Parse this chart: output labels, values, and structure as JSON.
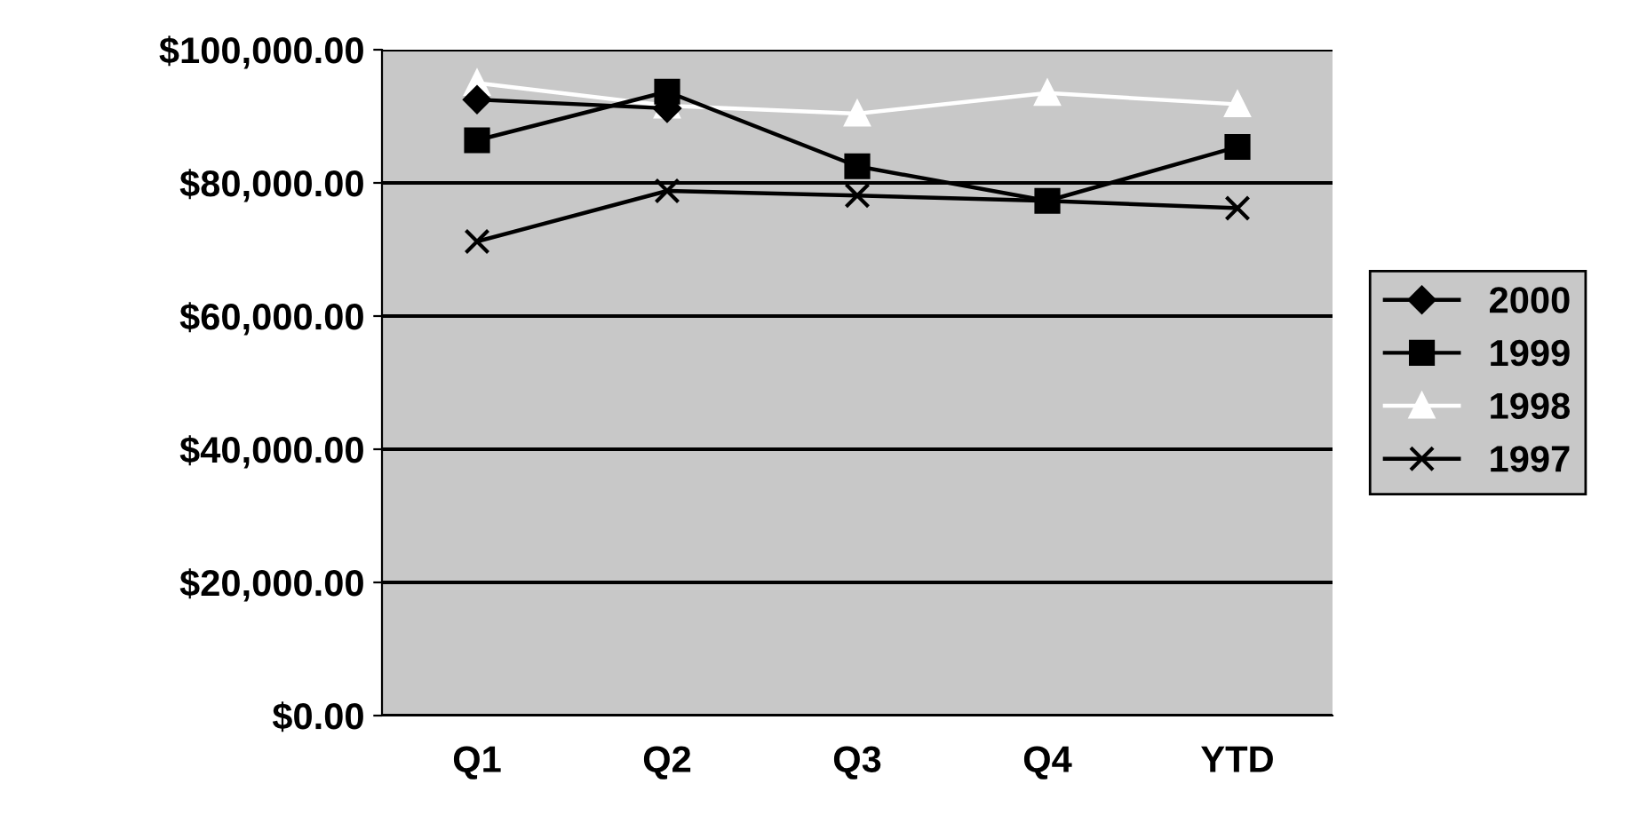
{
  "chart_data": {
    "type": "line",
    "categories": [
      "Q1",
      "Q2",
      "Q3",
      "Q4",
      "YTD"
    ],
    "series": [
      {
        "name": "2000",
        "color": "#000000",
        "marker": "diamond",
        "values": [
          92500,
          91200,
          null,
          null,
          null
        ]
      },
      {
        "name": "1999",
        "color": "#000000",
        "marker": "square",
        "values": [
          86400,
          93700,
          82500,
          77300,
          85400
        ]
      },
      {
        "name": "1998",
        "color": "#ffffff",
        "marker": "triangle",
        "values": [
          95000,
          91600,
          90400,
          93500,
          91800
        ]
      },
      {
        "name": "1997",
        "color": "#000000",
        "marker": "cross",
        "values": [
          71200,
          78800,
          78100,
          77300,
          76200
        ]
      }
    ],
    "ylim": [
      0,
      100000
    ],
    "yticks": [
      {
        "value": 0,
        "label": "$0.00"
      },
      {
        "value": 20000,
        "label": "$20,000.00"
      },
      {
        "value": 40000,
        "label": "$40,000.00"
      },
      {
        "value": 60000,
        "label": "$60,000.00"
      },
      {
        "value": 80000,
        "label": "$80,000.00"
      },
      {
        "value": 100000,
        "label": "$100,000.00"
      }
    ],
    "grid": "y",
    "legend": "right"
  }
}
